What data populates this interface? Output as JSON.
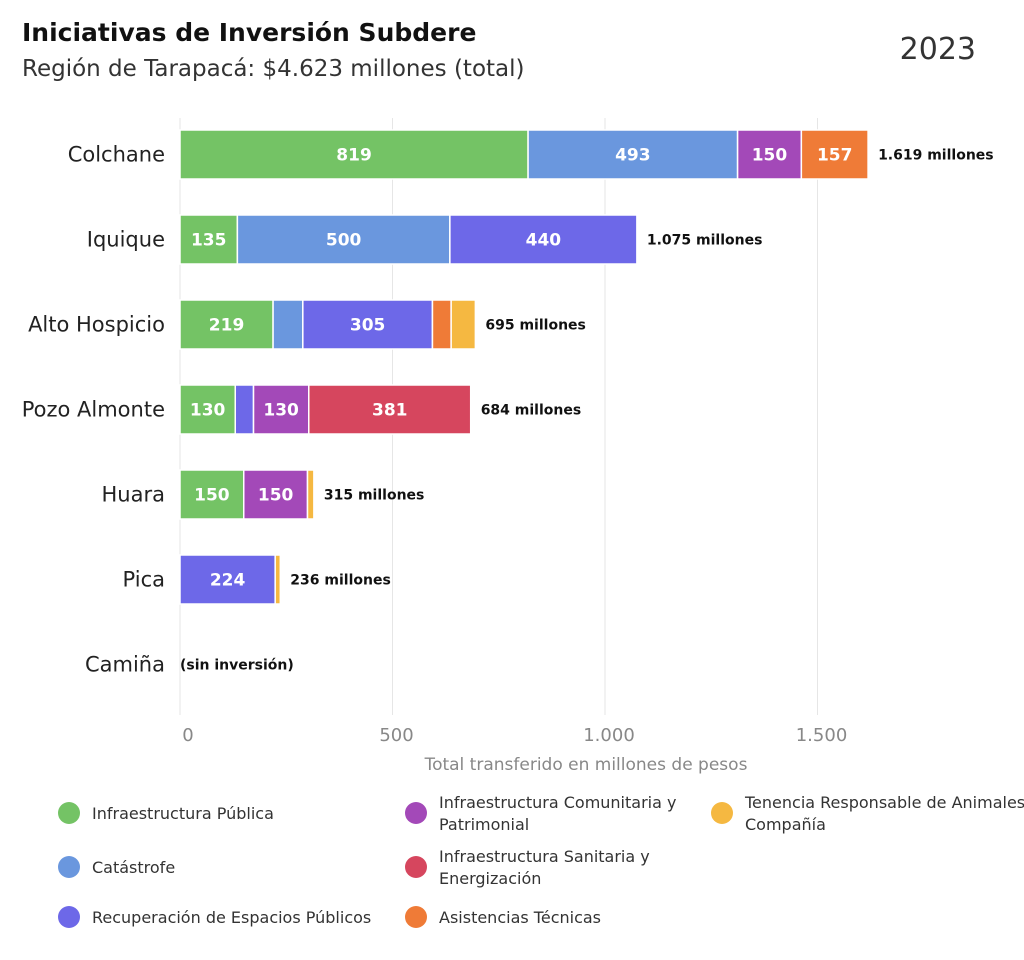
{
  "header": {
    "title": "Iniciativas de Inversión Subdere",
    "subtitle": "Región de Tarapacá: $4.623 millones (total)",
    "year": "2023"
  },
  "chart_data": {
    "type": "bar",
    "orientation": "horizontal",
    "stacked": true,
    "title": "Iniciativas de Inversión Subdere",
    "subtitle": "Región de Tarapacá: $4.623 millones (total)",
    "xlabel": "Total transferido en millones de pesos",
    "ylabel": "",
    "xlim": [
      0,
      1750
    ],
    "xticks": [
      0,
      500,
      1000,
      1500
    ],
    "xtick_labels": [
      "0",
      "500",
      "1.000",
      "1.500"
    ],
    "grid": "vertical",
    "legend_position": "bottom",
    "categories": [
      "Colchane",
      "Iquique",
      "Alto Hospicio",
      "Pozo Almonte",
      "Huara",
      "Pica",
      "Camiña"
    ],
    "totals": [
      1619,
      1075,
      695,
      684,
      315,
      236,
      0
    ],
    "total_labels": [
      "1.619 millones",
      "1.075 millones",
      "695 millones",
      "684 millones",
      "315 millones",
      "236 millones",
      "(sin inversión)"
    ],
    "series": [
      {
        "name": "Infraestructura Pública",
        "color": "#74c365",
        "values": [
          819,
          135,
          219,
          130,
          150,
          0,
          0
        ],
        "labels": [
          "819",
          "135",
          "219",
          "130",
          "150",
          "",
          ""
        ]
      },
      {
        "name": "Catástrofe",
        "color": "#6a97de",
        "values": [
          493,
          500,
          70,
          0,
          0,
          0,
          0
        ],
        "labels": [
          "493",
          "500",
          "",
          "",
          "",
          "",
          ""
        ]
      },
      {
        "name": "Recuperación de Espacios Públicos",
        "color": "#6d68e8",
        "values": [
          0,
          440,
          305,
          43,
          0,
          224,
          0
        ],
        "labels": [
          "",
          "440",
          "305",
          "",
          "",
          "224",
          ""
        ]
      },
      {
        "name": "Infraestructura Comunitaria y Patrimonial",
        "color": "#a349b8",
        "values": [
          150,
          0,
          0,
          130,
          150,
          0,
          0
        ],
        "labels": [
          "150",
          "",
          "",
          "130",
          "150",
          "",
          ""
        ]
      },
      {
        "name": "Infraestructura Sanitaria y Energización",
        "color": "#d6465e",
        "values": [
          0,
          0,
          0,
          381,
          0,
          0,
          0
        ],
        "labels": [
          "",
          "",
          "",
          "381",
          "",
          "",
          ""
        ]
      },
      {
        "name": "Asistencias Técnicas",
        "color": "#ef7b37",
        "values": [
          157,
          0,
          44,
          0,
          0,
          0,
          0
        ],
        "labels": [
          "157",
          "",
          "",
          "",
          "",
          "",
          ""
        ]
      },
      {
        "name": "Tenencia Responsable de Animales de Compañía",
        "color": "#f5b841",
        "values": [
          0,
          0,
          57,
          0,
          15,
          12,
          0
        ],
        "labels": [
          "",
          "",
          "",
          "",
          "",
          "",
          ""
        ]
      }
    ],
    "legend": [
      {
        "label_lines": [
          "Infraestructura Pública"
        ],
        "color": "#74c365"
      },
      {
        "label_lines": [
          "Catástrofe"
        ],
        "color": "#6a97de"
      },
      {
        "label_lines": [
          "Recuperación de Espacios Públicos"
        ],
        "color": "#6d68e8"
      },
      {
        "label_lines": [
          "Infraestructura Comunitaria y",
          "Patrimonial"
        ],
        "color": "#a349b8"
      },
      {
        "label_lines": [
          "Infraestructura Sanitaria y",
          "Energización"
        ],
        "color": "#d6465e"
      },
      {
        "label_lines": [
          "Asistencias Técnicas"
        ],
        "color": "#ef7b37"
      },
      {
        "label_lines": [
          "Tenencia Responsable de Animales de",
          "Compañía"
        ],
        "color": "#f5b841"
      }
    ]
  }
}
